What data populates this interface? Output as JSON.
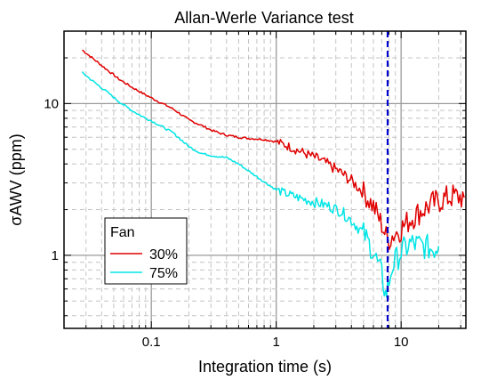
{
  "chart_data": {
    "type": "line",
    "title": "Allan-Werle Variance test",
    "xlabel": "Integration time (s)",
    "ylabel": "σAWV (ppm)",
    "x_scale": "log",
    "y_scale": "log",
    "xlim": [
      0.02,
      33
    ],
    "ylim": [
      0.33,
      30
    ],
    "x_ticks": [
      {
        "value": 0.1,
        "label": "0.1"
      },
      {
        "value": 1,
        "label": "1"
      },
      {
        "value": 10,
        "label": "10"
      }
    ],
    "y_ticks": [
      {
        "value": 1,
        "label": "1"
      },
      {
        "value": 10,
        "label": "10"
      }
    ],
    "grid": true,
    "legend": {
      "title": "Fan",
      "placement": "bottom-left"
    },
    "vertical_line": {
      "x": 7.8,
      "color": "#0000cc",
      "style": "dashed"
    },
    "series": [
      {
        "name": "30%",
        "color": "#e00000",
        "points": [
          [
            0.028,
            22.5
          ],
          [
            0.035,
            19.5
          ],
          [
            0.045,
            16.5
          ],
          [
            0.055,
            14.5
          ],
          [
            0.07,
            12.8
          ],
          [
            0.085,
            11.7
          ],
          [
            0.1,
            10.9
          ],
          [
            0.12,
            10.1
          ],
          [
            0.15,
            9.2
          ],
          [
            0.2,
            7.8
          ],
          [
            0.25,
            7.2
          ],
          [
            0.3,
            6.7
          ],
          [
            0.35,
            6.4
          ],
          [
            0.4,
            6.2
          ],
          [
            0.5,
            6.0
          ],
          [
            0.6,
            5.9
          ],
          [
            0.7,
            5.85
          ],
          [
            0.8,
            5.8
          ],
          [
            1.0,
            5.6
          ],
          [
            1.2,
            5.3
          ],
          [
            1.5,
            4.9
          ],
          [
            1.8,
            4.6
          ],
          [
            2.2,
            4.3
          ],
          [
            2.7,
            3.9
          ],
          [
            3.3,
            3.5
          ],
          [
            4.0,
            3.1
          ],
          [
            5.0,
            2.6
          ],
          [
            6.0,
            2.1
          ],
          [
            7.0,
            1.6
          ],
          [
            7.8,
            1.25
          ],
          [
            8.5,
            1.35
          ],
          [
            10.0,
            1.5
          ],
          [
            12.0,
            1.75
          ],
          [
            15.0,
            2.0
          ],
          [
            18.0,
            2.2
          ],
          [
            22.0,
            2.35
          ],
          [
            26.0,
            2.45
          ],
          [
            32.0,
            2.4
          ]
        ]
      },
      {
        "name": "75%",
        "color": "#00e5e5",
        "points": [
          [
            0.028,
            16.0
          ],
          [
            0.035,
            13.8
          ],
          [
            0.045,
            11.8
          ],
          [
            0.055,
            10.3
          ],
          [
            0.07,
            9.0
          ],
          [
            0.085,
            8.2
          ],
          [
            0.1,
            7.7
          ],
          [
            0.12,
            7.1
          ],
          [
            0.15,
            6.4
          ],
          [
            0.2,
            5.2
          ],
          [
            0.25,
            4.7
          ],
          [
            0.3,
            4.55
          ],
          [
            0.4,
            4.4
          ],
          [
            0.5,
            4.0
          ],
          [
            0.6,
            3.6
          ],
          [
            0.7,
            3.3
          ],
          [
            0.8,
            3.05
          ],
          [
            1.0,
            2.7
          ],
          [
            1.2,
            2.55
          ],
          [
            1.5,
            2.4
          ],
          [
            1.8,
            2.3
          ],
          [
            2.2,
            2.2
          ],
          [
            2.7,
            2.1
          ],
          [
            3.3,
            1.95
          ],
          [
            4.0,
            1.7
          ],
          [
            5.0,
            1.4
          ],
          [
            6.0,
            1.05
          ],
          [
            7.0,
            0.75
          ],
          [
            7.5,
            0.55
          ],
          [
            7.8,
            0.6
          ],
          [
            8.5,
            0.85
          ],
          [
            10.0,
            1.05
          ],
          [
            12.0,
            1.2
          ],
          [
            15.0,
            1.15
          ],
          [
            18.0,
            1.1
          ],
          [
            20.0,
            1.15
          ]
        ]
      }
    ]
  }
}
